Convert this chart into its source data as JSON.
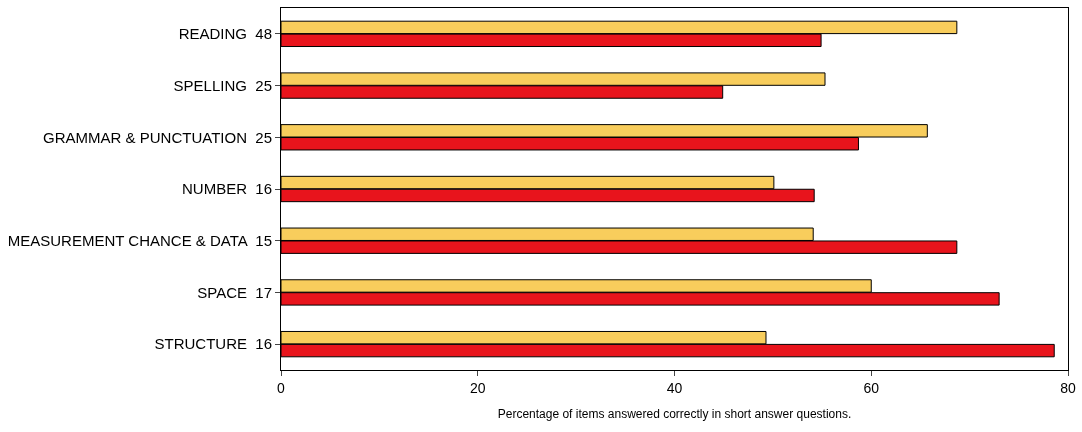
{
  "chart_data": {
    "type": "bar",
    "orientation": "horizontal",
    "categories": [
      "READING  48",
      "SPELLING  25",
      "GRAMMAR & PUNCTUATION  25",
      "NUMBER  16",
      "MEASUREMENT CHANCE & DATA  15",
      "SPACE  17",
      "STRUCTURE  16"
    ],
    "series": [
      {
        "color": "#f8cd5c",
        "values": [
          68.7,
          55.3,
          65.7,
          50.1,
          54.1,
          60.0,
          49.3
        ]
      },
      {
        "color": "#e8141c",
        "values": [
          54.9,
          44.9,
          58.7,
          54.2,
          68.7,
          73.0,
          78.6
        ]
      }
    ],
    "xlabel": "Percentage of items answered correctly in short answer questions.",
    "xlim": [
      0,
      80
    ],
    "xticks": [
      0,
      20,
      40,
      60,
      80
    ],
    "grid": false
  }
}
